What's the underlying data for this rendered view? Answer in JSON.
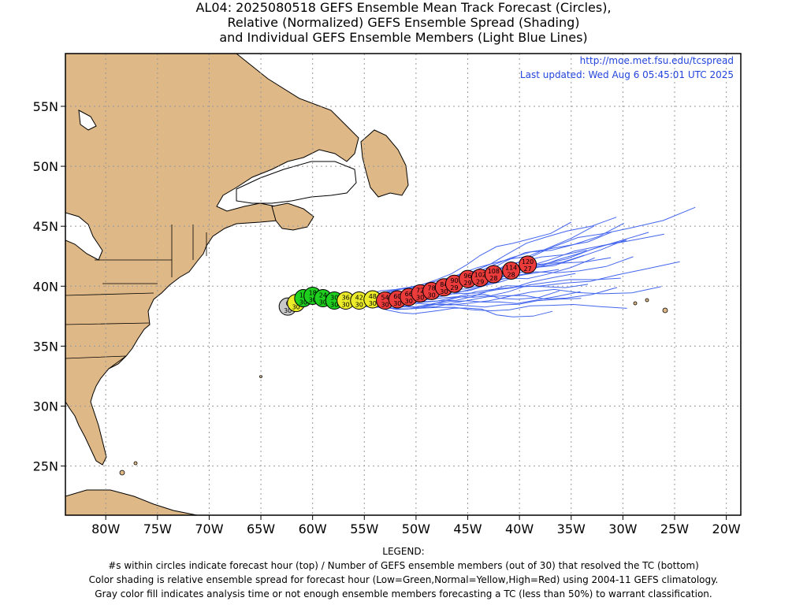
{
  "title": {
    "line1": "AL04: 2025080518 GEFS Ensemble Mean Track Forecast (Circles),",
    "line2": "Relative (Normalized) GEFS Ensemble Spread (Shading)",
    "line3": "and Individual GEFS Ensemble Members (Light Blue Lines)"
  },
  "header_right": {
    "url": "http://moe.met.fsu.edu/tcspread",
    "updated": "Last updated: Wed Aug 6 05:45:01 UTC 2025"
  },
  "axes": {
    "lat_labels": [
      "55N",
      "50N",
      "45N",
      "40N",
      "35N",
      "30N",
      "25N"
    ],
    "lat_values": [
      55,
      50,
      45,
      40,
      35,
      30,
      25
    ],
    "lon_labels": [
      "80W",
      "75W",
      "70W",
      "65W",
      "60W",
      "55W",
      "50W",
      "45W",
      "40W",
      "35W",
      "30W",
      "25W",
      "20W"
    ],
    "lon_values": [
      -80,
      -75,
      -70,
      -65,
      -60,
      -55,
      -50,
      -45,
      -40,
      -35,
      -30,
      -25,
      -20
    ]
  },
  "colors": {
    "land": "#deb887",
    "ocean": "#ffffff",
    "member_tracks": "#4466ee",
    "gray": "#c8c8c8",
    "yellow": "#ecec2a",
    "green": "#1ecf1e",
    "red": "#ec3b3b"
  },
  "track_points": [
    {
      "hour": "0",
      "members": "30",
      "lon": -62.4,
      "lat": 38.3,
      "class": "gray"
    },
    {
      "hour": "6",
      "members": "30",
      "lon": -61.6,
      "lat": 38.6,
      "class": "yellow"
    },
    {
      "hour": "12",
      "members": "30",
      "lon": -60.9,
      "lat": 39.0,
      "class": "green"
    },
    {
      "hour": "18",
      "members": "30",
      "lon": -60.0,
      "lat": 39.2,
      "class": "green"
    },
    {
      "hour": "24",
      "members": "30",
      "lon": -59.0,
      "lat": 39.0,
      "class": "green"
    },
    {
      "hour": "30",
      "members": "30",
      "lon": -57.9,
      "lat": 38.8,
      "class": "green"
    },
    {
      "hour": "36",
      "members": "30",
      "lon": -56.8,
      "lat": 38.8,
      "class": "yellow"
    },
    {
      "hour": "42",
      "members": "30",
      "lon": -55.5,
      "lat": 38.8,
      "class": "yellow"
    },
    {
      "hour": "48",
      "members": "30",
      "lon": -54.2,
      "lat": 38.9,
      "class": "yellow"
    },
    {
      "hour": "54",
      "members": "30",
      "lon": -53.0,
      "lat": 38.8,
      "class": "red"
    },
    {
      "hour": "60",
      "members": "30",
      "lon": -51.8,
      "lat": 38.9,
      "class": "red"
    },
    {
      "hour": "66",
      "members": "30",
      "lon": -50.7,
      "lat": 39.1,
      "class": "red"
    },
    {
      "hour": "72",
      "members": "30",
      "lon": -49.6,
      "lat": 39.4,
      "class": "red"
    },
    {
      "hour": "78",
      "members": "30",
      "lon": -48.5,
      "lat": 39.6,
      "class": "red"
    },
    {
      "hour": "84",
      "members": "30",
      "lon": -47.3,
      "lat": 39.9,
      "class": "red"
    },
    {
      "hour": "90",
      "members": "29",
      "lon": -46.3,
      "lat": 40.2,
      "class": "red"
    },
    {
      "hour": "96",
      "members": "29",
      "lon": -45.0,
      "lat": 40.6,
      "class": "red"
    },
    {
      "hour": "102",
      "members": "29",
      "lon": -43.8,
      "lat": 40.7,
      "class": "red"
    },
    {
      "hour": "108",
      "members": "28",
      "lon": -42.5,
      "lat": 41.0,
      "class": "red"
    },
    {
      "hour": "114",
      "members": "28",
      "lon": -40.8,
      "lat": 41.3,
      "class": "red"
    },
    {
      "hour": "120",
      "members": "27",
      "lon": -39.2,
      "lat": 41.8,
      "class": "red"
    }
  ],
  "legend": {
    "heading": "LEGEND:",
    "line1": "#s within circles indicate forecast hour (top) / Number of GEFS ensemble members (out of 30) that resolved the TC (bottom)",
    "line2": "Color shading is relative ensemble spread for forecast hour (Low=Green,Normal=Yellow,High=Red) using 2004-11 GEFS climatology.",
    "line3": "Gray color fill indicates analysis time or not enough ensemble members forecasting a TC (less than 50%) to warrant classification."
  }
}
